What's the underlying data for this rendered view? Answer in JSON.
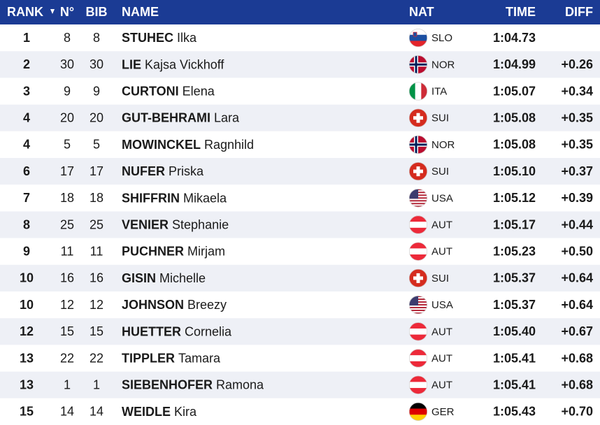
{
  "header": {
    "rank": "RANK",
    "no": "N°",
    "bib": "BIB",
    "name": "NAME",
    "nat": "NAT",
    "time": "TIME",
    "diff": "DIFF"
  },
  "rows": [
    {
      "rank": 1,
      "no": 8,
      "bib": 8,
      "surname": "STUHEC",
      "first": "Ilka",
      "nat": "SLO",
      "time": "1:04.73"
    },
    {
      "rank": 2,
      "no": 30,
      "bib": 30,
      "surname": "LIE",
      "first": "Kajsa Vickhoff",
      "nat": "NOR",
      "time": "1:04.99",
      "diff": "+0.26"
    },
    {
      "rank": 3,
      "no": 9,
      "bib": 9,
      "surname": "CURTONI",
      "first": "Elena",
      "nat": "ITA",
      "time": "1:05.07",
      "diff": "+0.34"
    },
    {
      "rank": 4,
      "no": 20,
      "bib": 20,
      "surname": "GUT-BEHRAMI",
      "first": "Lara",
      "nat": "SUI",
      "time": "1:05.08",
      "diff": "+0.35"
    },
    {
      "rank": 4,
      "no": 5,
      "bib": 5,
      "surname": "MOWINCKEL",
      "first": "Ragnhild",
      "nat": "NOR",
      "time": "1:05.08",
      "diff": "+0.35"
    },
    {
      "rank": 6,
      "no": 17,
      "bib": 17,
      "surname": "NUFER",
      "first": "Priska",
      "nat": "SUI",
      "time": "1:05.10",
      "diff": "+0.37"
    },
    {
      "rank": 7,
      "no": 18,
      "bib": 18,
      "surname": "SHIFFRIN",
      "first": "Mikaela",
      "nat": "USA",
      "time": "1:05.12",
      "diff": "+0.39"
    },
    {
      "rank": 8,
      "no": 25,
      "bib": 25,
      "surname": "VENIER",
      "first": "Stephanie",
      "nat": "AUT",
      "time": "1:05.17",
      "diff": "+0.44"
    },
    {
      "rank": 9,
      "no": 11,
      "bib": 11,
      "surname": "PUCHNER",
      "first": "Mirjam",
      "nat": "AUT",
      "time": "1:05.23",
      "diff": "+0.50"
    },
    {
      "rank": 10,
      "no": 16,
      "bib": 16,
      "surname": "GISIN",
      "first": "Michelle",
      "nat": "SUI",
      "time": "1:05.37",
      "diff": "+0.64"
    },
    {
      "rank": 10,
      "no": 12,
      "bib": 12,
      "surname": "JOHNSON",
      "first": "Breezy",
      "nat": "USA",
      "time": "1:05.37",
      "diff": "+0.64"
    },
    {
      "rank": 12,
      "no": 15,
      "bib": 15,
      "surname": "HUETTER",
      "first": "Cornelia",
      "nat": "AUT",
      "time": "1:05.40",
      "diff": "+0.67"
    },
    {
      "rank": 13,
      "no": 22,
      "bib": 22,
      "surname": "TIPPLER",
      "first": "Tamara",
      "nat": "AUT",
      "time": "1:05.41",
      "diff": "+0.68"
    },
    {
      "rank": 13,
      "no": 1,
      "bib": 1,
      "surname": "SIEBENHOFER",
      "first": "Ramona",
      "nat": "AUT",
      "time": "1:05.41",
      "diff": "+0.68"
    },
    {
      "rank": 15,
      "no": 14,
      "bib": 14,
      "surname": "WEIDLE",
      "first": "Kira",
      "nat": "GER",
      "time": "1:05.43",
      "diff": "+0.70"
    }
  ]
}
